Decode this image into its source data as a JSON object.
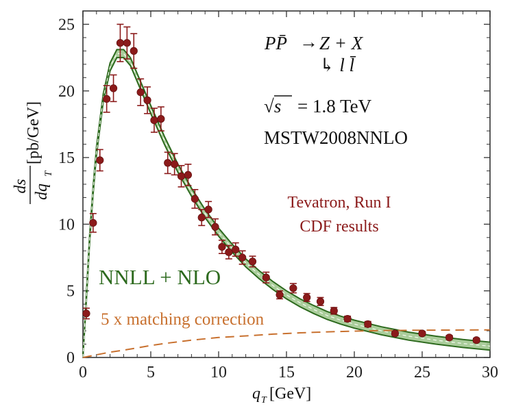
{
  "chart_data": {
    "type": "line",
    "xlim": [
      0,
      30
    ],
    "ylim": [
      0,
      26
    ],
    "xticks": [
      "0",
      "5",
      "10",
      "15",
      "20",
      "25",
      "30"
    ],
    "yticks": [
      "0",
      "5",
      "10",
      "15",
      "20",
      "25"
    ],
    "xlabel": {
      "main": "q",
      "sub": "T",
      "unit": "[GeV]"
    },
    "ylabel": {
      "num": "ds",
      "den_main": "dq",
      "den_sub": "T",
      "unit": "[pb/GeV]"
    },
    "annotations": {
      "process": {
        "lhs": "PP̄",
        "arrow": "→",
        "rhs": "Z + X",
        "decay": "↳ l l̄"
      },
      "energy": {
        "sqrt": "√s",
        "value": "= 1.8 TeV"
      },
      "pdf": "MSTW2008NNLO",
      "experiment_line1": "Tevatron, Run I",
      "experiment_line2": "CDF results"
    },
    "series": [
      {
        "name": "NNLL + NLO",
        "style": "band",
        "color": "#2d6a1e",
        "x": [
          0,
          0.25,
          0.5,
          0.75,
          1,
          1.5,
          2,
          2.5,
          3,
          3.5,
          4,
          4.5,
          5,
          6,
          7,
          8,
          9,
          10,
          11,
          12,
          13,
          14,
          15,
          16,
          17,
          18,
          19,
          20,
          22,
          24,
          26,
          28,
          30
        ],
        "y": [
          0,
          4.5,
          9.0,
          12.5,
          15.5,
          19.5,
          21.8,
          22.8,
          22.8,
          22.2,
          21.0,
          19.8,
          18.6,
          16.3,
          14.2,
          12.4,
          10.8,
          9.4,
          8.2,
          7.1,
          6.2,
          5.4,
          4.7,
          4.1,
          3.6,
          3.15,
          2.8,
          2.5,
          2.0,
          1.6,
          1.3,
          1.05,
          0.85
        ],
        "band_halfwidth": 0.3
      },
      {
        "name": "5 x matching correction",
        "style": "dashed",
        "color": "#c8702e",
        "x": [
          0,
          1,
          2,
          3,
          4,
          5,
          6,
          8,
          10,
          12,
          14,
          16,
          18,
          20,
          22,
          24,
          26,
          28,
          30
        ],
        "y": [
          0,
          0.2,
          0.4,
          0.55,
          0.72,
          0.9,
          1.05,
          1.3,
          1.5,
          1.62,
          1.75,
          1.85,
          1.92,
          1.98,
          2.02,
          2.04,
          2.05,
          2.06,
          2.07
        ]
      },
      {
        "name": "Tevatron, Run I CDF results",
        "style": "points",
        "color": "#8b1a1a",
        "x": [
          0.25,
          0.75,
          1.25,
          1.75,
          2.25,
          2.75,
          3.25,
          3.75,
          4.25,
          4.75,
          5.25,
          5.75,
          6.25,
          6.75,
          7.25,
          7.75,
          8.25,
          8.75,
          9.25,
          9.75,
          10.25,
          10.75,
          11.25,
          11.75,
          12.5,
          13.5,
          14.5,
          15.5,
          16.5,
          17.5,
          18.5,
          19.5,
          21,
          23,
          25,
          27,
          29
        ],
        "y": [
          3.3,
          10.1,
          14.8,
          19.4,
          20.2,
          23.6,
          23.6,
          23.0,
          19.9,
          19.3,
          17.8,
          17.9,
          14.6,
          14.5,
          13.6,
          13.7,
          11.9,
          10.5,
          11.1,
          9.8,
          8.3,
          7.9,
          8.1,
          7.5,
          7.2,
          6.0,
          4.7,
          5.2,
          4.5,
          4.2,
          3.5,
          2.9,
          2.5,
          1.8,
          1.8,
          1.5,
          1.3
        ],
        "err": [
          0.4,
          0.7,
          0.8,
          1.0,
          1.0,
          1.4,
          1.2,
          1.3,
          1.0,
          1.0,
          0.9,
          0.9,
          0.8,
          0.8,
          0.8,
          0.8,
          0.7,
          0.6,
          0.6,
          0.6,
          0.5,
          0.5,
          0.5,
          0.5,
          0.4,
          0.4,
          0.3,
          0.35,
          0.3,
          0.3,
          0.25,
          0.2,
          0.2,
          0.15,
          0.15,
          0.15,
          0.15
        ]
      }
    ]
  }
}
